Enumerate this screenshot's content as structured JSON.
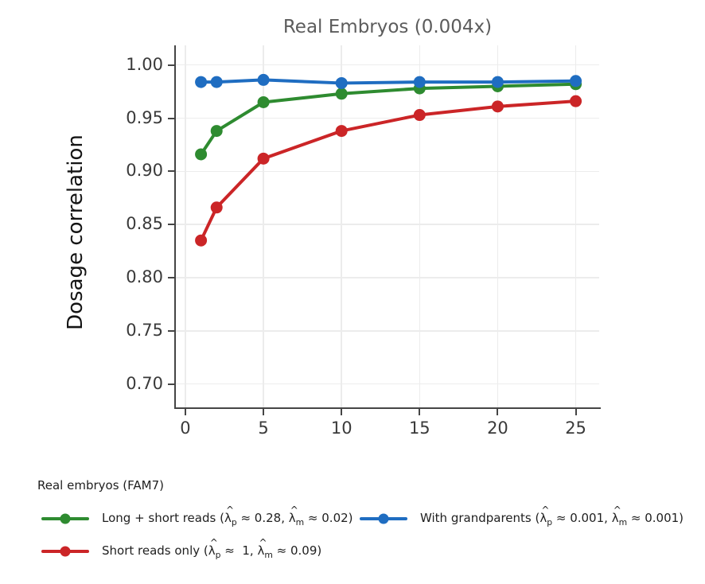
{
  "chart_data": {
    "type": "line",
    "title": "Real Embryos (0.004x)",
    "ylabel": "Dosage correlation",
    "xlabel": "",
    "x": [
      1,
      2,
      5,
      10,
      15,
      20,
      25
    ],
    "series": [
      {
        "id": "long-short-reads",
        "name": "Long + short reads",
        "color": "#2e8b30",
        "values": [
          0.916,
          0.938,
          0.965,
          0.973,
          0.978,
          0.98,
          0.982
        ]
      },
      {
        "id": "with-grandparents",
        "name": "With grandparents",
        "color": "#1f6dc1",
        "values": [
          0.984,
          0.984,
          0.986,
          0.983,
          0.984,
          0.984,
          0.985
        ]
      },
      {
        "id": "short-reads-only",
        "name": "Short reads only",
        "color": "#cb2527",
        "values": [
          0.835,
          0.866,
          0.912,
          0.938,
          0.953,
          0.961,
          0.966
        ]
      }
    ],
    "x_tick_values": [
      0,
      5,
      10,
      15,
      20,
      25
    ],
    "x_tick_labels": [
      "0",
      "5",
      "10",
      "15",
      "20",
      "25"
    ],
    "y_tick_values": [
      1.0,
      0.95,
      0.9,
      0.85,
      0.8,
      0.75,
      0.7
    ],
    "y_tick_labels": [
      "1.00",
      "0.95",
      "0.90",
      "0.85",
      "0.80",
      "0.75",
      "0.70"
    ],
    "xlim": [
      -0.61,
      26.5
    ],
    "ylim": [
      0.678,
      1.0185
    ],
    "grid": true,
    "legend_position": "bottom"
  },
  "legend": {
    "title": "Real embryos (FAM7)",
    "items": [
      {
        "id": "long-short-reads",
        "color": "#2e8b30",
        "row": 1,
        "col": 1,
        "label": "Long + short reads ({lp} ≈ 0.28, {lm} ≈ 0.02)"
      },
      {
        "id": "with-grandparents",
        "color": "#1f6dc1",
        "row": 1,
        "col": 2,
        "label": "With grandparents ({lp} ≈ 0.001, {lm} ≈ 0.001)"
      },
      {
        "id": "short-reads-only",
        "color": "#cb2527",
        "row": 2,
        "col": 1,
        "label": "Short reads only ({lp} ≈  1, {lm} ≈ 0.09)"
      }
    ]
  },
  "colors": {
    "axis": "#454545",
    "grid": "#ececec",
    "tick_label": "#3a3a3a",
    "title": "#5c5c5c",
    "ylabel": "#141414",
    "legend_text": "#1f1f1f"
  }
}
